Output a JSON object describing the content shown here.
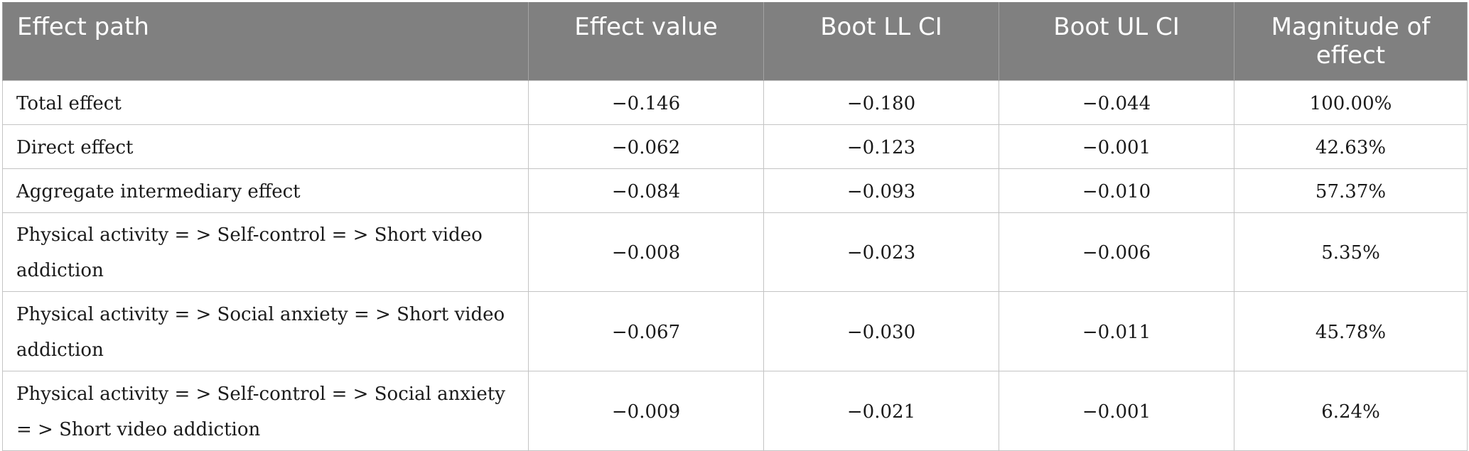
{
  "table": {
    "headers": {
      "path": "Effect path",
      "effect_value": "Effect value",
      "boot_ll": "Boot LL CI",
      "boot_ul": "Boot UL CI",
      "magnitude": "Magnitude of effect"
    },
    "rows": [
      {
        "path": "Total effect",
        "effect_value": "−0.146",
        "boot_ll": "−0.180",
        "boot_ul": "−0.044",
        "magnitude": "100.00%"
      },
      {
        "path": "Direct effect",
        "effect_value": "−0.062",
        "boot_ll": "−0.123",
        "boot_ul": "−0.001",
        "magnitude": "42.63%"
      },
      {
        "path": "Aggregate intermediary effect",
        "effect_value": "−0.084",
        "boot_ll": "−0.093",
        "boot_ul": "−0.010",
        "magnitude": "57.37%"
      },
      {
        "path": "Physical activity = > Self-control = > Short video addiction",
        "effect_value": "−0.008",
        "boot_ll": "−0.023",
        "boot_ul": "−0.006",
        "magnitude": "5.35%"
      },
      {
        "path": "Physical activity = > Social anxiety = > Short video addiction",
        "effect_value": "−0.067",
        "boot_ll": "−0.030",
        "boot_ul": "−0.011",
        "magnitude": "45.78%"
      },
      {
        "path": "Physical activity = > Self-control = > Social anxiety = > Short video addiction",
        "effect_value": "−0.009",
        "boot_ll": "−0.021",
        "boot_ul": "−0.001",
        "magnitude": "6.24%"
      }
    ]
  },
  "colors": {
    "header_background": "#808080",
    "header_text": "#ffffff",
    "grid_line": "#c4c4c4",
    "body_text": "#1a1a1a"
  }
}
